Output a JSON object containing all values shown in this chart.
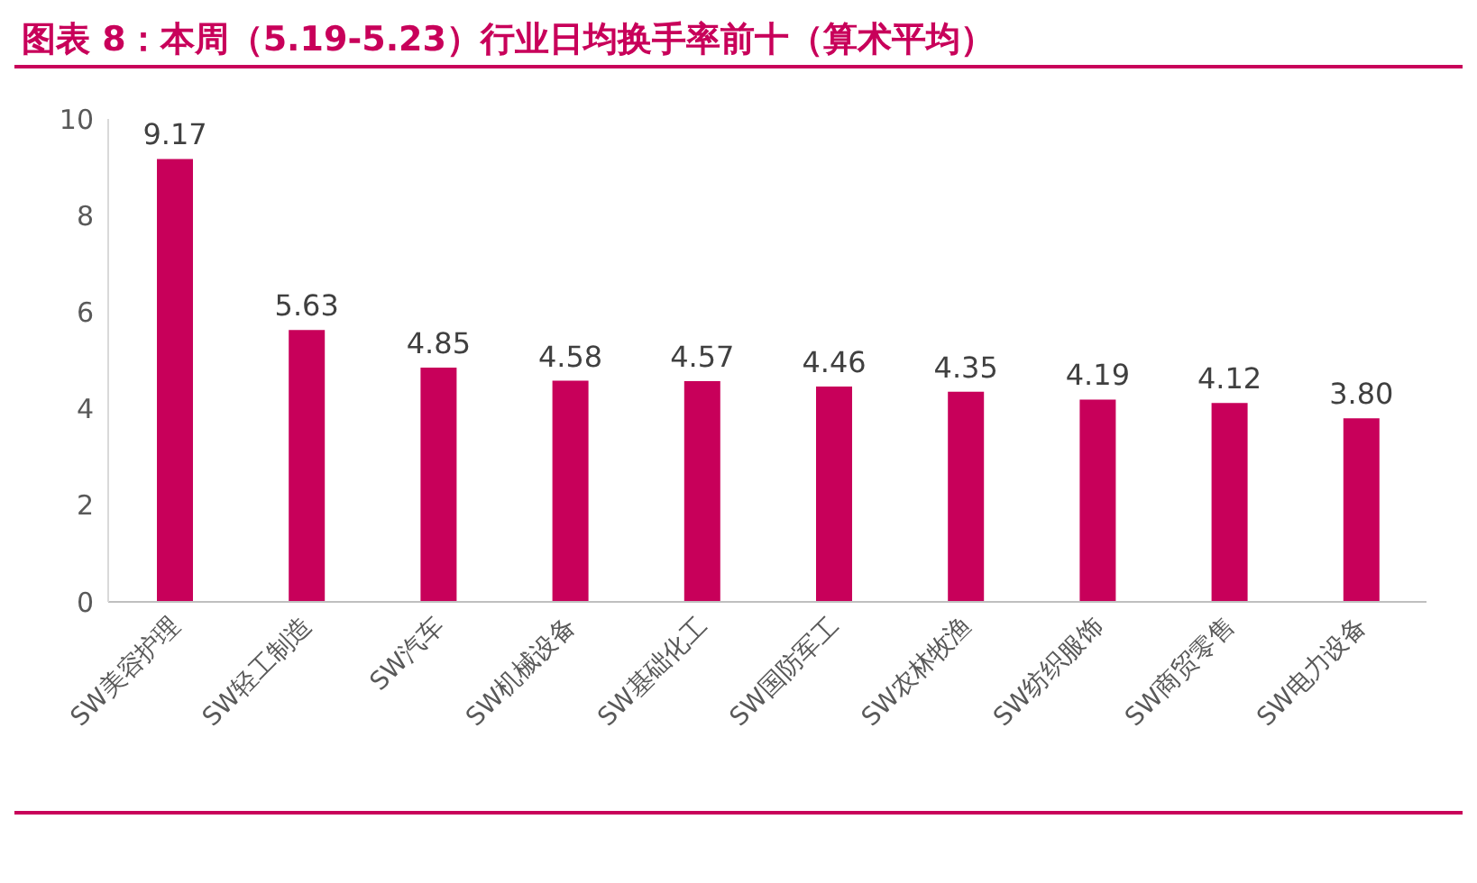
{
  "chart_data": {
    "type": "bar",
    "title": "图表 8：本周（5.19-5.23）行业日均换手率前十（算术平均）",
    "categories": [
      "SW美容护理",
      "SW轻工制造",
      "SW汽车",
      "SW机械设备",
      "SW基础化工",
      "SW国防军工",
      "SW农林牧渔",
      "SW纺织服饰",
      "SW商贸零售",
      "SW电力设备"
    ],
    "values": [
      9.17,
      5.63,
      4.85,
      4.58,
      4.57,
      4.46,
      4.35,
      4.19,
      4.12,
      3.8
    ],
    "value_labels": [
      "9.17",
      "5.63",
      "4.85",
      "4.58",
      "4.57",
      "4.46",
      "4.35",
      "4.19",
      "4.12",
      "3.80"
    ],
    "color": "#c8005a",
    "ylim": [
      0,
      10
    ],
    "yticks": [
      0,
      2,
      4,
      6,
      8,
      10
    ],
    "grid": false,
    "legend": false
  }
}
